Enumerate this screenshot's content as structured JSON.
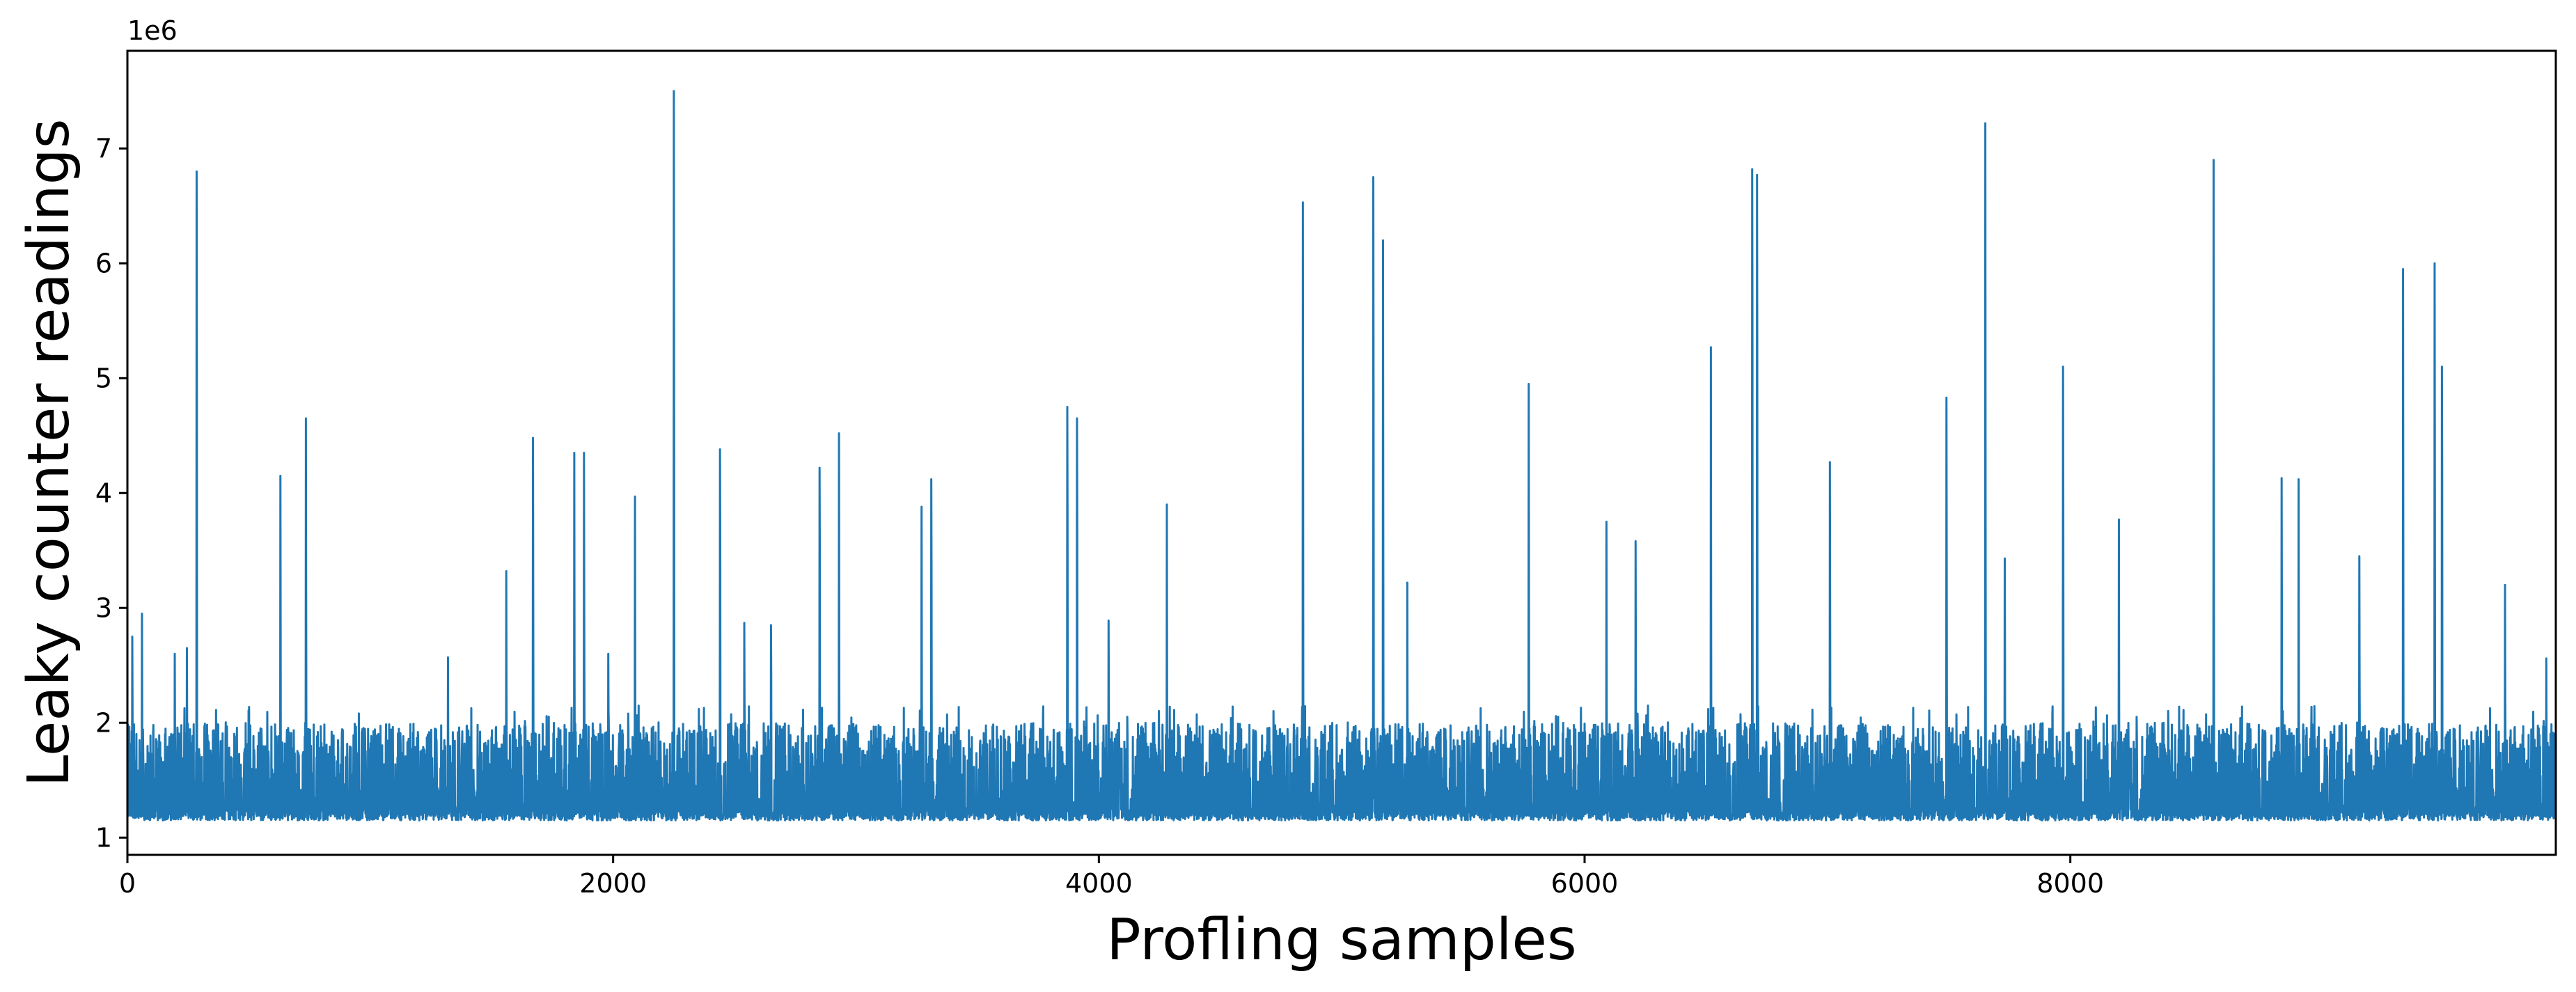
{
  "chart_data": {
    "type": "line",
    "xlabel": "Profling samples",
    "ylabel": "Leaky counter readings",
    "y_offset_label": "1e6",
    "xlim": [
      0,
      9999
    ],
    "ylim": [
      0.85,
      7.85
    ],
    "x_ticks": [
      0,
      2000,
      4000,
      6000,
      8000
    ],
    "x_tick_labels": [
      "0",
      "2000",
      "4000",
      "6000",
      "8000"
    ],
    "y_ticks": [
      1,
      2,
      3,
      4,
      5,
      6,
      7
    ],
    "y_tick_labels": [
      "1",
      "2",
      "3",
      "4",
      "5",
      "6",
      "7"
    ],
    "grid": false,
    "legend": "none",
    "series": [
      {
        "color": "#1f77b4",
        "n_samples": 10000,
        "baseline_range": [
          1.15,
          1.25
        ],
        "noise_band_range": [
          1.15,
          2.0
        ],
        "spikes": [
          {
            "x": 20,
            "y": 2.75
          },
          {
            "x": 60,
            "y": 2.95
          },
          {
            "x": 195,
            "y": 2.6
          },
          {
            "x": 245,
            "y": 2.65
          },
          {
            "x": 285,
            "y": 6.8
          },
          {
            "x": 630,
            "y": 4.15
          },
          {
            "x": 735,
            "y": 4.65
          },
          {
            "x": 1320,
            "y": 2.57
          },
          {
            "x": 1560,
            "y": 3.32
          },
          {
            "x": 1670,
            "y": 4.48
          },
          {
            "x": 1840,
            "y": 4.35
          },
          {
            "x": 1880,
            "y": 4.35
          },
          {
            "x": 1980,
            "y": 2.6
          },
          {
            "x": 2090,
            "y": 3.97
          },
          {
            "x": 2250,
            "y": 7.5
          },
          {
            "x": 2440,
            "y": 4.38
          },
          {
            "x": 2540,
            "y": 2.87
          },
          {
            "x": 2650,
            "y": 2.85
          },
          {
            "x": 2850,
            "y": 4.22
          },
          {
            "x": 2930,
            "y": 4.52
          },
          {
            "x": 3270,
            "y": 3.88
          },
          {
            "x": 3310,
            "y": 4.12
          },
          {
            "x": 3870,
            "y": 4.75
          },
          {
            "x": 3910,
            "y": 4.65
          },
          {
            "x": 4040,
            "y": 2.89
          },
          {
            "x": 4280,
            "y": 3.9
          },
          {
            "x": 4840,
            "y": 6.53
          },
          {
            "x": 5130,
            "y": 6.75
          },
          {
            "x": 5170,
            "y": 6.2
          },
          {
            "x": 5270,
            "y": 3.22
          },
          {
            "x": 5770,
            "y": 4.95
          },
          {
            "x": 6090,
            "y": 3.75
          },
          {
            "x": 6210,
            "y": 3.58
          },
          {
            "x": 6520,
            "y": 5.27
          },
          {
            "x": 6690,
            "y": 6.82
          },
          {
            "x": 6710,
            "y": 6.77
          },
          {
            "x": 7010,
            "y": 4.27
          },
          {
            "x": 7490,
            "y": 4.83
          },
          {
            "x": 7650,
            "y": 7.22
          },
          {
            "x": 7730,
            "y": 3.43
          },
          {
            "x": 7970,
            "y": 5.1
          },
          {
            "x": 8200,
            "y": 3.77
          },
          {
            "x": 8590,
            "y": 6.9
          },
          {
            "x": 8870,
            "y": 4.13
          },
          {
            "x": 8940,
            "y": 4.12
          },
          {
            "x": 9190,
            "y": 3.45
          },
          {
            "x": 9370,
            "y": 5.95
          },
          {
            "x": 9500,
            "y": 6.0
          },
          {
            "x": 9530,
            "y": 5.1
          },
          {
            "x": 9790,
            "y": 3.2
          },
          {
            "x": 9960,
            "y": 2.56
          }
        ]
      }
    ]
  }
}
